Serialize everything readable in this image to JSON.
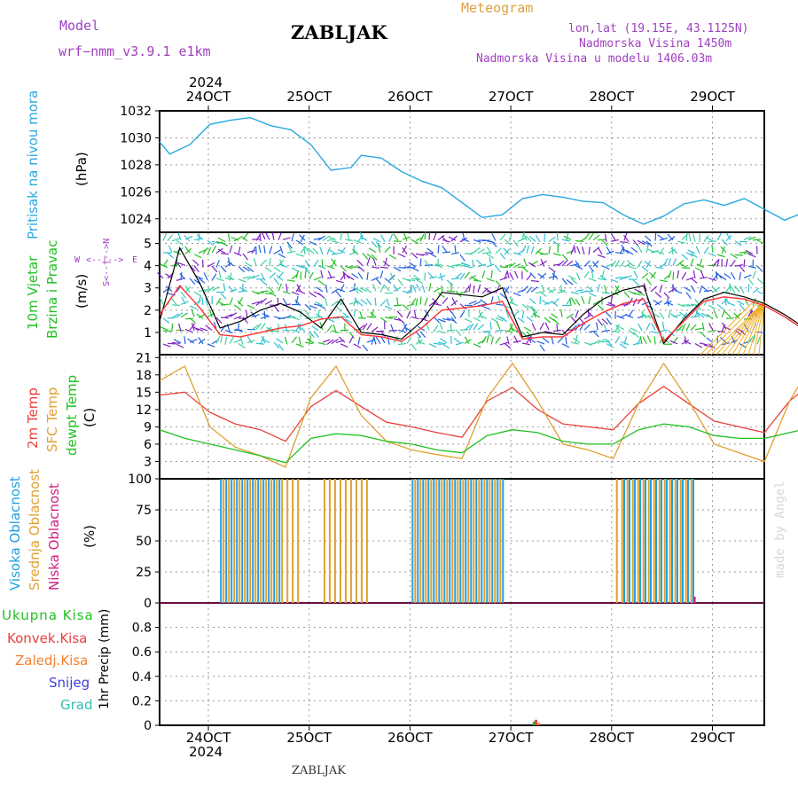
{
  "header": {
    "model_label": "Model",
    "model_name": "wrf−nmm_v3.9.1  e1km",
    "station": "ZABLJAK",
    "meteogram_label": "Meteogram",
    "lonlat": "lon,lat (19.15E, 43.1125N)",
    "elevation": "Nadmorska Visina 1450m",
    "model_elevation": "Nadmorska Visina u modelu 1406.03m",
    "credit": "made by Angel",
    "footer_station": "ZABLJAK"
  },
  "time_axis": {
    "year": "2024",
    "days": [
      "24OCT",
      "25OCT",
      "26OCT",
      "27OCT",
      "28OCT",
      "29OCT"
    ]
  },
  "colors": {
    "pressure": "#2aa8e0",
    "temp_2m": "#e8413c",
    "sfc_temp": "#e0a030",
    "dewpt": "#22c022",
    "wind_speed": "#000000",
    "wind_10m": "#ff3030",
    "cloud_high": "#1fa0e0",
    "cloud_mid": "#e0a030",
    "cloud_low": "#d02080",
    "precip_total": "#22c022",
    "precip_conv": "#e84040",
    "precip_frozen": "#f08030",
    "precip_snow": "#4040e0",
    "precip_hail": "#30c0b0"
  },
  "labels": {
    "pressure": [
      "Pritisak na nivou mora",
      "(hPa)"
    ],
    "wind": [
      "10m Vjetar",
      "Brzina i Pravac",
      "(m/s)"
    ],
    "compass": {
      "n": "N",
      "s": "S",
      "w": "W",
      "e": "E"
    },
    "temp": [
      "2m Temp",
      "SFC Temp",
      "dewpt Temp",
      "(C)"
    ],
    "clouds": [
      "Visoka Oblacnost",
      "Srednja Oblacnost",
      "Niska Oblacnost",
      "(%)"
    ],
    "precip": [
      "Ukupna Kisa",
      "Konvek.Kisa",
      "Zaledj.Kisa",
      "Snijeg",
      "Grad",
      "1hr Precip (mm)"
    ]
  },
  "chart_data": [
    {
      "type": "line",
      "name": "pressure",
      "x_unit": "days from 23 Oct 2024 12:00",
      "ylim": [
        1023,
        1032
      ],
      "y_ticks": [
        "1024",
        "1026",
        "1028",
        "1030",
        "1032"
      ],
      "x": [
        0,
        0.1,
        0.3,
        0.5,
        0.7,
        0.9,
        1.1,
        1.3,
        1.5,
        1.7,
        1.9,
        2.0,
        2.2,
        2.4,
        2.6,
        2.8,
        3.0,
        3.2,
        3.4,
        3.6,
        3.8,
        4.0,
        4.2,
        4.4,
        4.6,
        4.8,
        5.0,
        5.2,
        5.4,
        5.6,
        5.8,
        6.0,
        6.2,
        6.4,
        6.6,
        6.8,
        7.0,
        7.2,
        7.4,
        7.6,
        7.8,
        8.0
      ],
      "values": [
        1029.7,
        1028.8,
        1029.5,
        1031.0,
        1031.3,
        1031.5,
        1030.9,
        1030.6,
        1029.5,
        1027.6,
        1027.8,
        1028.7,
        1028.5,
        1027.5,
        1026.8,
        1026.3,
        1025.2,
        1024.1,
        1024.3,
        1025.5,
        1025.8,
        1025.6,
        1025.3,
        1025.2,
        1024.3,
        1023.6,
        1024.2,
        1025.1,
        1025.4,
        1025.0,
        1025.5,
        1024.7,
        1023.9,
        1024.5,
        1026.2,
        1026.8,
        1026.9,
        1027.6,
        1026.5,
        1025.1,
        1025.5,
        1026.6
      ],
      "x_extra": [
        8.2,
        8.4,
        8.6,
        8.8,
        8.9,
        9.1,
        9.3,
        9.5
      ],
      "values_extra": [
        1026.8,
        1026.9,
        1026.7,
        1027.3,
        1027.4,
        1026.9,
        1026.4,
        1025.8
      ]
    },
    {
      "type": "line",
      "name": "wind",
      "ylim": [
        0,
        5.5
      ],
      "y_ticks": [
        "1",
        "2",
        "3",
        "4",
        "5"
      ],
      "series": [
        {
          "name": "wind_speed",
          "x": [
            0,
            0.2,
            0.4,
            0.6,
            0.8,
            1.0,
            1.2,
            1.4,
            1.6,
            1.8,
            2.0,
            2.2,
            2.4,
            2.6,
            2.8,
            3.0,
            3.2,
            3.4,
            3.6,
            3.8,
            4.0,
            4.2,
            4.4,
            4.6,
            4.8,
            5.0,
            5.2,
            5.4,
            5.6,
            5.8,
            6.0,
            6.2,
            6.4,
            6.6,
            6.8,
            7.0,
            7.2,
            7.4,
            7.6,
            7.8,
            8.0,
            8.2,
            8.4,
            8.6,
            8.8,
            9.0,
            9.2,
            9.4,
            9.5
          ],
          "values": [
            1.5,
            4.8,
            3.2,
            1.2,
            1.5,
            2.0,
            2.3,
            1.9,
            1.2,
            2.5,
            1.0,
            0.9,
            0.7,
            1.5,
            2.8,
            2.7,
            2.6,
            3.0,
            0.8,
            1.0,
            0.9,
            1.8,
            2.5,
            2.9,
            3.1,
            0.5,
            1.6,
            2.5,
            2.8,
            2.6,
            2.3,
            1.8,
            1.2,
            1.6,
            1.0,
            1.5,
            2.4,
            2.9,
            3.3,
            4.2,
            1.8,
            1.4,
            1.2,
            1.1,
            1.3,
            1.0,
            3.2,
            4.8,
            4.6
          ]
        },
        {
          "name": "wind_10m",
          "x": [
            0,
            0.2,
            0.4,
            0.6,
            0.8,
            1.0,
            1.2,
            1.4,
            1.6,
            1.8,
            2.0,
            2.2,
            2.4,
            2.6,
            2.8,
            3.0,
            3.2,
            3.4,
            3.6,
            3.8,
            4.0,
            4.2,
            4.4,
            4.6,
            4.8,
            5.0,
            5.2,
            5.4,
            5.6,
            5.8,
            6.0,
            6.2,
            6.4,
            6.6,
            6.8,
            7.0,
            7.2,
            7.4,
            7.6,
            7.8,
            8.0,
            8.2,
            8.4,
            8.6,
            8.8,
            9.0,
            9.2,
            9.4,
            9.5
          ],
          "values": [
            1.8,
            3.1,
            2.1,
            0.9,
            0.8,
            1.0,
            1.2,
            1.3,
            1.6,
            1.7,
            0.9,
            0.8,
            0.6,
            1.2,
            2.0,
            2.1,
            2.2,
            2.4,
            0.7,
            0.8,
            0.8,
            1.4,
            1.9,
            2.3,
            2.5,
            0.6,
            1.5,
            2.4,
            2.6,
            2.5,
            2.2,
            1.7,
            1.1,
            1.4,
            0.9,
            1.3,
            2.0,
            2.3,
            2.6,
            3.0,
            1.5,
            1.2,
            1.1,
            1.0,
            1.2,
            1.0,
            2.8,
            4.4,
            4.9
          ]
        }
      ]
    },
    {
      "type": "line",
      "name": "temperature",
      "ylim": [
        0,
        21.5
      ],
      "y_ticks": [
        "0",
        "3",
        "6",
        "9",
        "12",
        "15",
        "18",
        "21"
      ],
      "x": [
        0,
        0.25,
        0.5,
        0.75,
        1.0,
        1.25,
        1.5,
        1.75,
        2.0,
        2.25,
        2.5,
        2.75,
        3.0,
        3.25,
        3.5,
        3.75,
        4.0,
        4.25,
        4.5,
        4.75,
        5.0,
        5.25,
        5.5,
        5.75,
        6.0,
        6.25,
        6.5,
        6.75,
        7.0,
        7.25,
        7.5,
        7.75,
        8.0,
        8.25,
        8.5,
        8.75,
        9.0,
        9.25,
        9.5
      ],
      "series": [
        {
          "name": "temp_2m",
          "values": [
            14.5,
            15.0,
            11.5,
            9.5,
            8.5,
            6.5,
            12.5,
            15.3,
            12.5,
            9.8,
            9.0,
            8.0,
            7.2,
            13.5,
            15.8,
            12.0,
            9.5,
            9.0,
            8.5,
            13.0,
            16.0,
            13.0,
            10.0,
            9.0,
            8.0,
            13.5,
            17.0,
            14.0,
            11.0,
            10.0,
            9.0,
            13.5,
            15.8,
            12.0,
            9.8,
            9.0,
            8.5,
            12.5,
            14.5
          ]
        },
        {
          "name": "sfc_temp",
          "values": [
            17.0,
            19.5,
            9.0,
            5.5,
            4.0,
            2.0,
            14.0,
            19.5,
            11.0,
            6.5,
            5.0,
            4.2,
            3.5,
            14.0,
            20.0,
            13.5,
            6.0,
            5.0,
            3.5,
            13.0,
            20.0,
            13.5,
            6.0,
            4.5,
            3.0,
            13.5,
            20.8,
            13.0,
            5.5,
            5.0,
            3.5,
            14.0,
            20.0,
            12.0,
            5.5,
            4.0,
            3.8,
            11.0,
            18.3
          ]
        },
        {
          "name": "dewpt",
          "values": [
            8.5,
            7.0,
            6.0,
            5.0,
            4.0,
            2.8,
            7.0,
            7.8,
            7.5,
            6.5,
            6.0,
            5.0,
            4.5,
            7.5,
            8.5,
            8.0,
            6.5,
            6.0,
            6.0,
            8.5,
            9.5,
            9.0,
            7.5,
            7.0,
            7.0,
            8.0,
            9.0,
            9.5,
            9.0,
            8.0,
            7.0,
            9.5,
            9.5,
            8.5,
            7.8,
            7.5,
            8.0,
            9.2,
            7.5
          ]
        }
      ]
    },
    {
      "type": "bar",
      "name": "clouds",
      "ylim": [
        0,
        100
      ],
      "y_ticks": [
        "0",
        "25",
        "50",
        "75",
        "100"
      ],
      "series": [
        {
          "name": "cloud_high",
          "segments": [
            [
              0.6,
              1.2,
              100
            ],
            [
              2.5,
              3.4,
              100
            ],
            [
              4.6,
              5.3,
              100
            ],
            [
              6.4,
              6.9,
              100
            ]
          ]
        },
        {
          "name": "cloud_mid",
          "segments": [
            [
              0.6,
              1.4,
              100
            ],
            [
              1.6,
              2.1,
              100
            ],
            [
              2.5,
              3.4,
              100
            ],
            [
              4.5,
              5.3,
              100
            ],
            [
              6.4,
              7.1,
              100
            ]
          ]
        },
        {
          "name": "cloud_low",
          "bars": [
            [
              5.3,
              5
            ],
            [
              8.2,
              8
            ],
            [
              8.5,
              6
            ],
            [
              9.0,
              26
            ],
            [
              9.3,
              96
            ],
            [
              9.4,
              7
            ]
          ]
        }
      ]
    },
    {
      "type": "bar",
      "name": "precip",
      "ylim": [
        0,
        1.0
      ],
      "y_ticks": [
        "0",
        "0.2",
        "0.4",
        "0.6",
        "0.8"
      ],
      "series": [
        {
          "name": "precip_total",
          "bars": [
            [
              3.7,
              0.03
            ],
            [
              6.5,
              0.035
            ]
          ]
        },
        {
          "name": "precip_conv",
          "bars": [
            [
              3.72,
              0.045
            ],
            [
              6.55,
              0.03
            ]
          ]
        },
        {
          "name": "precip_frozen",
          "bars": [
            [
              3.75,
              0.02
            ],
            [
              6.6,
              0.02
            ]
          ]
        }
      ]
    }
  ]
}
